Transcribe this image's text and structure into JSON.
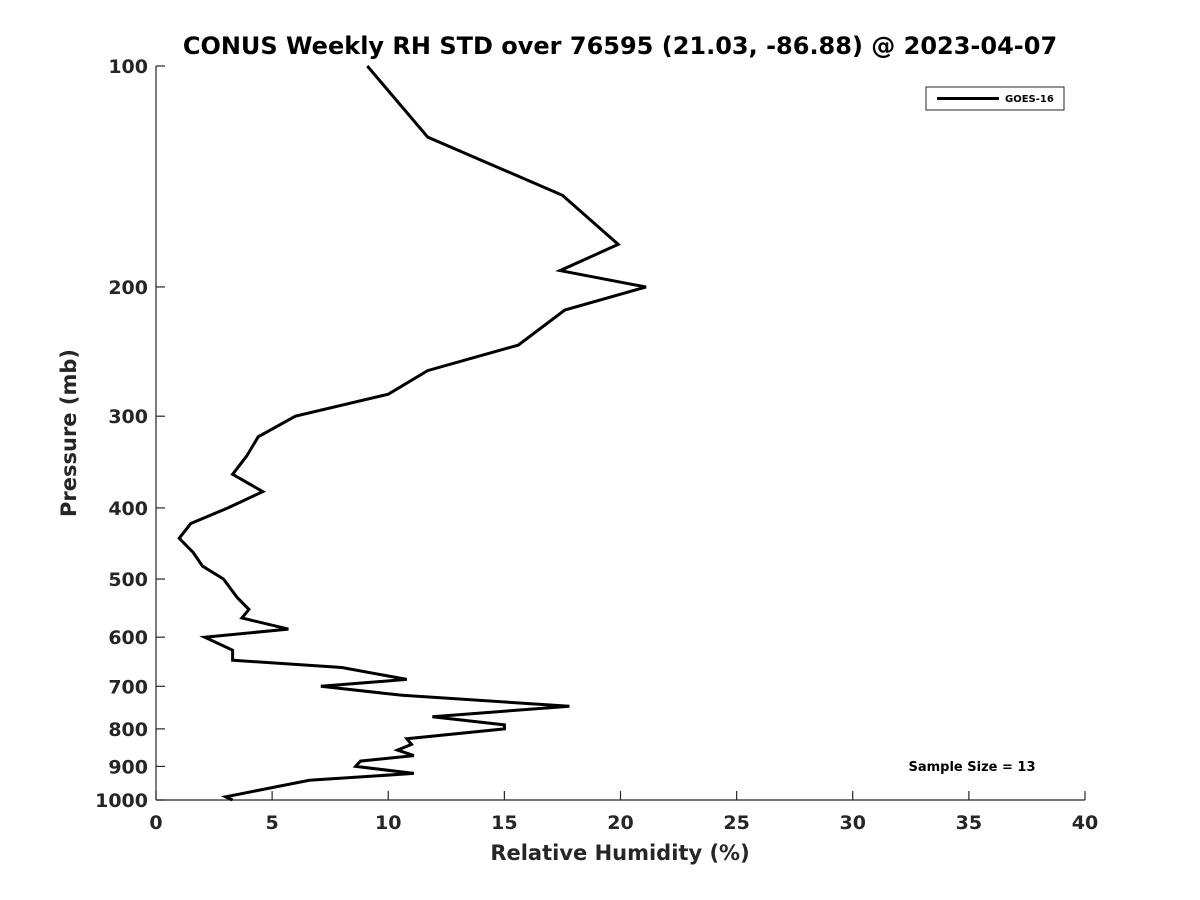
{
  "chart_data": {
    "type": "line",
    "title": "CONUS Weekly RH STD over 76595 (21.03, -86.88) @ 2023-04-07",
    "xlabel": "Relative Humidity (%)",
    "ylabel": "Pressure (mb)",
    "xlim": [
      0,
      40
    ],
    "ylim": [
      100,
      1000
    ],
    "y_scale": "log",
    "y_reversed": true,
    "grid": false,
    "x_ticks": [
      0,
      5,
      10,
      15,
      20,
      25,
      30,
      35,
      40
    ],
    "x_tick_labels": [
      "0",
      "5",
      "10",
      "15",
      "20",
      "25",
      "30",
      "35",
      "40"
    ],
    "y_ticks": [
      100,
      200,
      300,
      400,
      500,
      600,
      700,
      800,
      900,
      1000
    ],
    "y_tick_labels": [
      "100",
      "200",
      "300",
      "400",
      "500",
      "600",
      "700",
      "800",
      "900",
      "1000"
    ],
    "legend": {
      "position": "top-right",
      "entries": [
        "GOES-16"
      ]
    },
    "annotation": "Sample Size = 13",
    "series": [
      {
        "name": "GOES-16",
        "color": "#000000",
        "x": [
          9.1,
          11.7,
          17.5,
          19.9,
          17.4,
          21.1,
          17.6,
          15.6,
          11.7,
          10.0,
          6.0,
          4.4,
          3.9,
          3.3,
          4.6,
          3.1,
          1.5,
          1.0,
          1.6,
          2.0,
          2.9,
          3.5,
          4.0,
          3.7,
          5.7,
          2.1,
          3.3,
          3.3,
          8.0,
          10.8,
          7.1,
          10.6,
          17.8,
          11.9,
          15.0,
          15.0,
          10.8,
          11.0,
          10.4,
          11.1,
          8.8,
          8.6,
          11.1,
          6.6,
          3.0,
          3.3
        ],
        "y": [
          100,
          125,
          150,
          175,
          190,
          200,
          215,
          240,
          260,
          280,
          300,
          320,
          340,
          360,
          380,
          400,
          420,
          440,
          460,
          480,
          500,
          530,
          550,
          565,
          585,
          600,
          625,
          645,
          660,
          685,
          700,
          720,
          745,
          770,
          790,
          800,
          825,
          840,
          855,
          870,
          885,
          900,
          920,
          940,
          990,
          1000
        ]
      }
    ]
  }
}
